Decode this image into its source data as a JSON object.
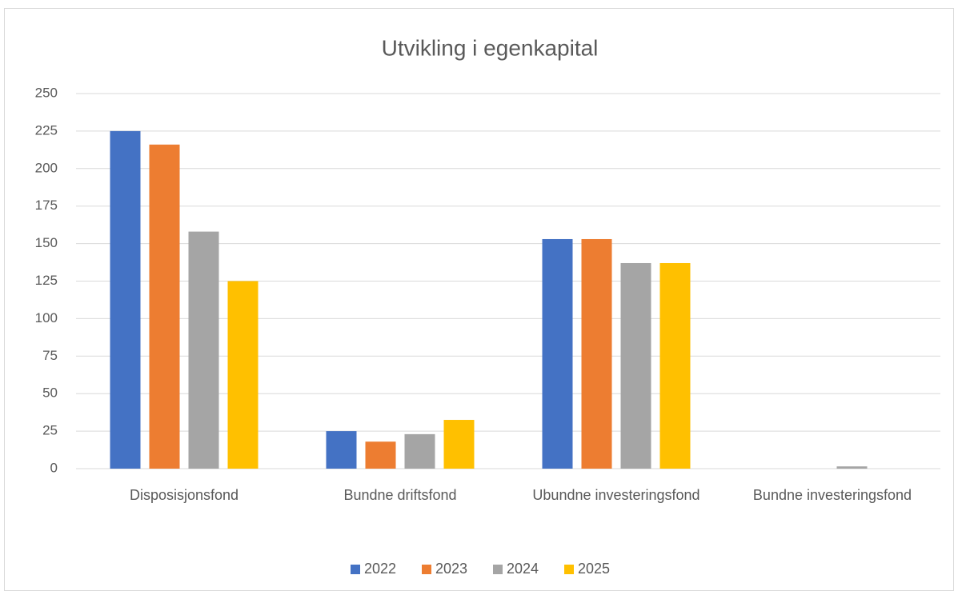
{
  "chart_data": {
    "type": "bar",
    "title": "Utvikling i egenkapital",
    "categories": [
      "Disposisjonsfond",
      "Bundne driftsfond",
      "Ubundne investeringsfond",
      "Bundne investeringsfond"
    ],
    "series": [
      {
        "name": "2022",
        "color": "#4472c4",
        "values": [
          225,
          25,
          153,
          0
        ]
      },
      {
        "name": "2023",
        "color": "#ed7d31",
        "values": [
          216,
          18,
          153,
          0
        ]
      },
      {
        "name": "2024",
        "color": "#a5a5a5",
        "values": [
          158,
          23,
          137,
          1.5
        ]
      },
      {
        "name": "2025",
        "color": "#ffc000",
        "values": [
          125,
          32.5,
          137,
          0
        ]
      }
    ],
    "ylim": [
      0,
      250
    ],
    "yticks": [
      0,
      25,
      50,
      75,
      100,
      125,
      150,
      175,
      200,
      225,
      250
    ],
    "grid": true,
    "legend": "bottom"
  }
}
